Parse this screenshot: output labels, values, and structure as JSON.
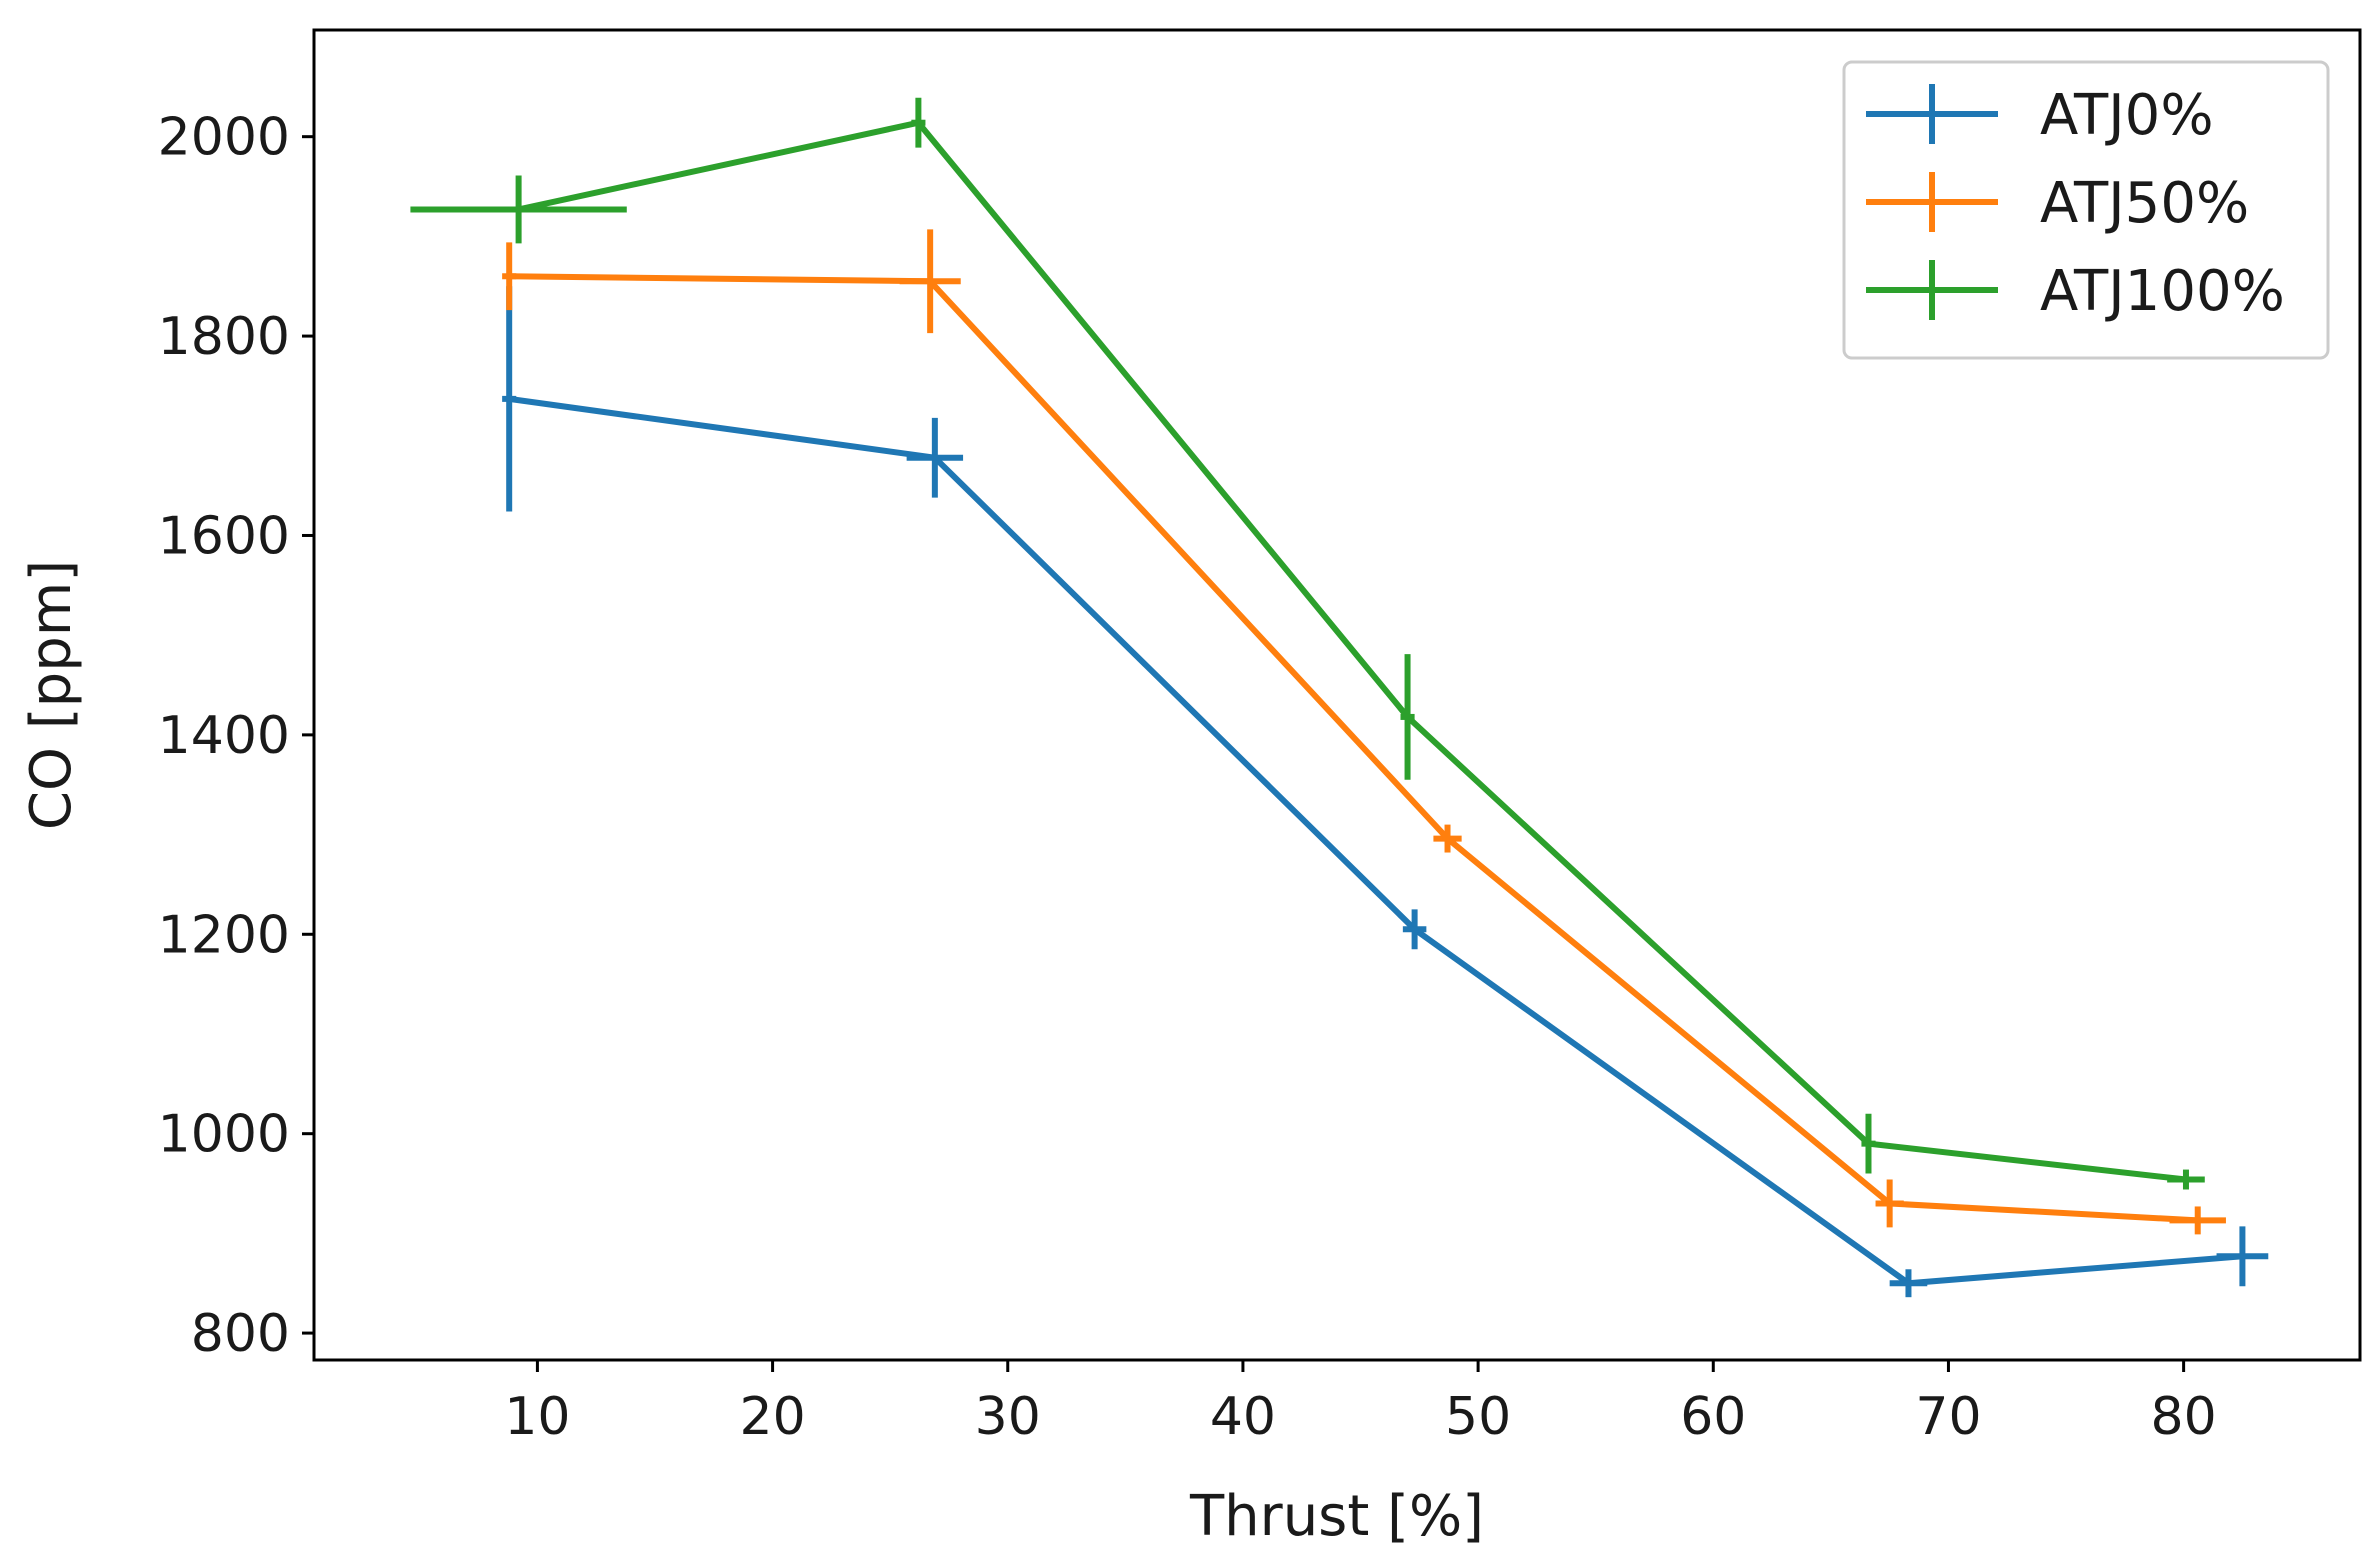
{
  "chart_data": {
    "type": "line",
    "title": "",
    "xlabel": "Thrust [%]",
    "ylabel": "CO [ppm]",
    "xlim": [
      0.5,
      87.5
    ],
    "ylim": [
      773,
      2107
    ],
    "xticks": [
      10,
      20,
      30,
      40,
      50,
      60,
      70,
      80
    ],
    "yticks": [
      800,
      1000,
      1200,
      1400,
      1600,
      1800,
      2000
    ],
    "grid": false,
    "legend_position": "top-right",
    "series": [
      {
        "name": "ATJ0%",
        "color": "#1f77b4",
        "x": [
          8.8,
          26.9,
          47.3,
          68.3,
          82.5
        ],
        "y": [
          1737,
          1678,
          1205,
          850,
          877
        ],
        "x_err": [
          0.3,
          1.2,
          0.5,
          0.8,
          1.1
        ],
        "y_err": [
          113,
          40,
          20,
          14,
          30
        ]
      },
      {
        "name": "ATJ50%",
        "color": "#ff7f0e",
        "x": [
          8.8,
          26.7,
          48.7,
          67.5,
          80.6
        ],
        "y": [
          1860,
          1855,
          1296,
          930,
          913
        ],
        "x_err": [
          0.3,
          1.3,
          0.6,
          0.6,
          1.2
        ],
        "y_err": [
          34,
          52,
          14,
          24,
          14
        ]
      },
      {
        "name": "ATJ100%",
        "color": "#2ca02c",
        "x": [
          9.2,
          26.2,
          47.0,
          66.6,
          80.1
        ],
        "y": [
          1927,
          2014,
          1418,
          990,
          954
        ],
        "x_err": [
          4.6,
          0.3,
          0.3,
          0.3,
          0.8
        ],
        "y_err": [
          34,
          25,
          63,
          30,
          10
        ]
      }
    ]
  }
}
